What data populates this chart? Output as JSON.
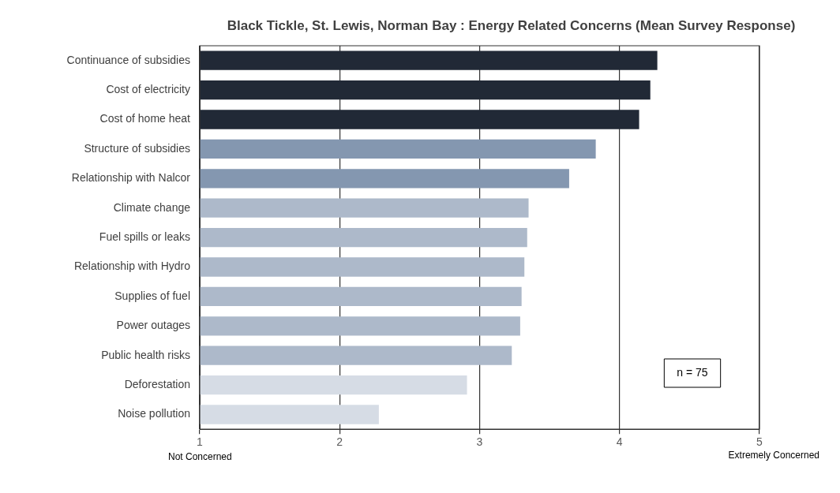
{
  "chart_data": {
    "type": "bar",
    "orientation": "horizontal",
    "title": "Black Tickle, St. Lewis, Norman Bay : Energy Related Concerns (Mean Survey Response)",
    "categories": [
      "Continuance of subsidies",
      "Cost of electricity",
      "Cost of home heat",
      "Structure of subsidies",
      "Relationship with Nalcor",
      "Climate change",
      "Fuel spills or leaks",
      "Relationship with Hydro",
      "Supplies of fuel",
      "Power outages",
      "Public health risks",
      "Deforestation",
      "Noise pollution"
    ],
    "values": [
      4.27,
      4.22,
      4.14,
      3.83,
      3.64,
      3.35,
      3.34,
      3.32,
      3.3,
      3.29,
      3.23,
      2.91,
      2.28
    ],
    "colors": [
      "#212936",
      "#212936",
      "#212936",
      "#8497b0",
      "#8497b0",
      "#adb9ca",
      "#adb9ca",
      "#adb9ca",
      "#adb9ca",
      "#adb9ca",
      "#adb9ca",
      "#d6dce5",
      "#d6dce5"
    ],
    "xlim": [
      1,
      5
    ],
    "xticks": [
      1,
      2,
      3,
      4,
      5
    ],
    "grid": "x",
    "legend": false,
    "annotations": [
      "Not Concerned",
      "Extremely Concerned",
      "n = 75"
    ]
  }
}
